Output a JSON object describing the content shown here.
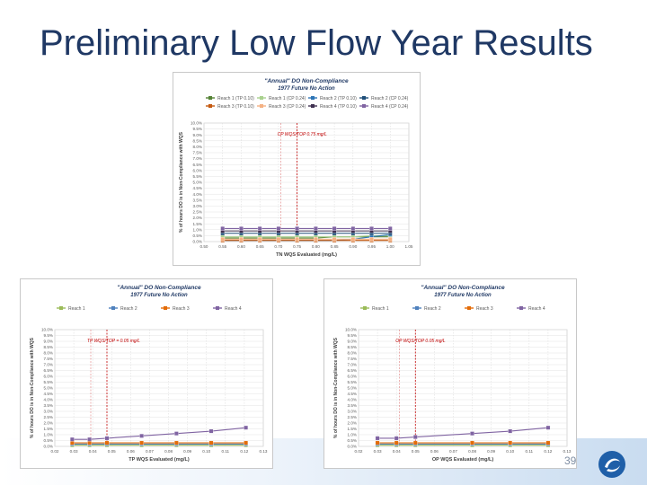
{
  "slide": {
    "title": "Preliminary Low Flow Year Results",
    "page_number": "39"
  },
  "chart_data": [
    {
      "type": "line",
      "title": "\"Annual\" DO Non-Compliance",
      "subtitle": "1977 Future No Action",
      "xlabel": "TN WQS Evaluated (mg/L)",
      "ylabel": "% of hours DO is in Non-Compliance with WQS",
      "x": [
        0.55,
        0.6,
        0.65,
        0.7,
        0.75,
        0.8,
        0.85,
        0.9,
        0.95,
        1.0
      ],
      "xlim": [
        0.5,
        1.05
      ],
      "xticks": [
        "0.50",
        "0.55",
        "0.60",
        "0.65",
        "0.70",
        "0.75",
        "0.80",
        "0.85",
        "0.90",
        "0.95",
        "1.00",
        "1.05"
      ],
      "ylim": [
        0,
        10
      ],
      "yticks": [
        "0.0%",
        "0.5%",
        "1.0%",
        "1.5%",
        "2.0%",
        "2.5%",
        "3.0%",
        "3.5%",
        "4.0%",
        "4.5%",
        "5.0%",
        "5.5%",
        "6.0%",
        "6.5%",
        "7.0%",
        "7.5%",
        "8.0%",
        "8.5%",
        "9.0%",
        "9.5%",
        "10.0%"
      ],
      "legend": [
        "Reach 1 (TP 0.10)",
        "Reach 1 (CP 0.24)",
        "Reach 2 (TP 0.10)",
        "Reach 2 (CP 0.24)",
        "Reach 3 (TP 0.10)",
        "Reach 3 (CP 0.24)",
        "Reach 4 (TP 0.10)",
        "Reach 4 (CP 0.24)"
      ],
      "annotation": "CP WQS/TOP 0.75 mg/L",
      "annotation_x": 0.75,
      "series": [
        {
          "name": "Reach 1 (TP 0.10)",
          "color": "#548235",
          "values": [
            0.3,
            0.3,
            0.3,
            0.3,
            0.3,
            0.3,
            0.4,
            0.4,
            0.4,
            0.4
          ]
        },
        {
          "name": "Reach 1 (CP 0.24)",
          "color": "#a9d18e",
          "values": [
            0.4,
            0.4,
            0.4,
            0.4,
            0.4,
            0.4,
            0.4,
            0.4,
            0.5,
            0.5
          ]
        },
        {
          "name": "Reach 2 (TP 0.10)",
          "color": "#2e75b6",
          "values": [
            0.1,
            0.1,
            0.1,
            0.1,
            0.1,
            0.1,
            0.1,
            0.2,
            0.4,
            0.6
          ]
        },
        {
          "name": "Reach 2 (CP 0.24)",
          "color": "#1f4e79",
          "values": [
            0.7,
            0.7,
            0.7,
            0.7,
            0.7,
            0.7,
            0.7,
            0.7,
            0.7,
            0.7
          ]
        },
        {
          "name": "Reach 3 (TP 0.10)",
          "color": "#c55a11",
          "values": [
            0.1,
            0.1,
            0.1,
            0.1,
            0.1,
            0.1,
            0.1,
            0.1,
            0.1,
            0.1
          ]
        },
        {
          "name": "Reach 3 (CP 0.24)",
          "color": "#f4b183",
          "values": [
            0.2,
            0.2,
            0.2,
            0.2,
            0.2,
            0.2,
            0.2,
            0.2,
            0.2,
            0.2
          ]
        },
        {
          "name": "Reach 4 (TP 0.10)",
          "color": "#403151",
          "values": [
            0.9,
            0.9,
            0.9,
            0.9,
            0.9,
            0.9,
            0.9,
            0.9,
            0.9,
            0.9
          ]
        },
        {
          "name": "Reach 4 (CP 0.24)",
          "color": "#8064a2",
          "values": [
            1.1,
            1.1,
            1.1,
            1.1,
            1.1,
            1.1,
            1.1,
            1.1,
            1.1,
            1.1
          ]
        }
      ]
    },
    {
      "type": "line",
      "title": "\"Annual\" DO Non-Compliance",
      "subtitle": "1977 Future No Action",
      "xlabel": "TP WQS Evaluated (mg/L)",
      "ylabel": "% of hours DO is in Non-Compliance with WQS",
      "x": [
        0.03,
        0.04,
        0.05,
        0.07,
        0.09,
        0.11,
        0.13
      ],
      "xlim": [
        0.02,
        0.14
      ],
      "xticks": [
        "0.02",
        "0.03",
        "0.04",
        "0.05",
        "0.06",
        "0.07",
        "0.08",
        "0.09",
        "0.10",
        "0.11",
        "0.12",
        "0.13"
      ],
      "ylim": [
        0,
        10
      ],
      "yticks": [
        "0.0%",
        "0.5%",
        "1.0%",
        "1.5%",
        "2.0%",
        "2.5%",
        "3.0%",
        "3.5%",
        "4.0%",
        "4.5%",
        "5.0%",
        "5.5%",
        "6.0%",
        "6.5%",
        "7.0%",
        "7.5%",
        "8.0%",
        "8.5%",
        "9.0%",
        "9.5%",
        "10.0%"
      ],
      "legend": [
        "Reach 1",
        "Reach 2",
        "Reach 3",
        "Reach 4"
      ],
      "annotation": "TP WQS/TOP = 0.05 mg/L",
      "annotation_x": 0.05,
      "series": [
        {
          "name": "Reach 1",
          "color": "#9bbb59",
          "values": [
            0.1,
            0.1,
            0.1,
            0.1,
            0.1,
            0.1,
            0.1
          ]
        },
        {
          "name": "Reach 2",
          "color": "#4f81bd",
          "values": [
            0.2,
            0.2,
            0.2,
            0.2,
            0.2,
            0.2,
            0.2
          ]
        },
        {
          "name": "Reach 3",
          "color": "#e36c09",
          "values": [
            0.3,
            0.3,
            0.3,
            0.3,
            0.3,
            0.3,
            0.3
          ]
        },
        {
          "name": "Reach 4",
          "color": "#8064a2",
          "values": [
            0.6,
            0.6,
            0.7,
            0.9,
            1.1,
            1.3,
            1.6
          ]
        }
      ]
    },
    {
      "type": "line",
      "title": "\"Annual\" DO Non-Compliance",
      "subtitle": "1977 Future No Action",
      "xlabel": "OP WQS Evaluated (mg/L)",
      "ylabel": "% of hours DO is in Non-Compliance with WQS",
      "x": [
        0.03,
        0.04,
        0.05,
        0.08,
        0.1,
        0.12
      ],
      "xlim": [
        0.02,
        0.13
      ],
      "xticks": [
        "0.02",
        "0.03",
        "0.04",
        "0.05",
        "0.06",
        "0.07",
        "0.08",
        "0.09",
        "0.10",
        "0.11",
        "0.12",
        "0.13"
      ],
      "ylim": [
        0,
        10
      ],
      "yticks": [
        "0.0%",
        "0.5%",
        "1.0%",
        "1.5%",
        "2.0%",
        "2.5%",
        "3.0%",
        "3.5%",
        "4.0%",
        "4.5%",
        "5.0%",
        "5.5%",
        "6.0%",
        "6.5%",
        "7.0%",
        "7.5%",
        "8.0%",
        "8.5%",
        "9.0%",
        "9.5%",
        "10.0%"
      ],
      "legend": [
        "Reach 1",
        "Reach 2",
        "Reach 3",
        "Reach 4"
      ],
      "annotation": "OP WQS/TOP 0.05 mg/L",
      "annotation_x": 0.05,
      "series": [
        {
          "name": "Reach 1",
          "color": "#9bbb59",
          "values": [
            0.1,
            0.1,
            0.1,
            0.1,
            0.1,
            0.1
          ]
        },
        {
          "name": "Reach 2",
          "color": "#4f81bd",
          "values": [
            0.2,
            0.2,
            0.2,
            0.2,
            0.2,
            0.2
          ]
        },
        {
          "name": "Reach 3",
          "color": "#e36c09",
          "values": [
            0.3,
            0.3,
            0.3,
            0.3,
            0.3,
            0.3
          ]
        },
        {
          "name": "Reach 4",
          "color": "#8064a2",
          "values": [
            0.7,
            0.7,
            0.8,
            1.1,
            1.3,
            1.6
          ]
        }
      ]
    }
  ]
}
